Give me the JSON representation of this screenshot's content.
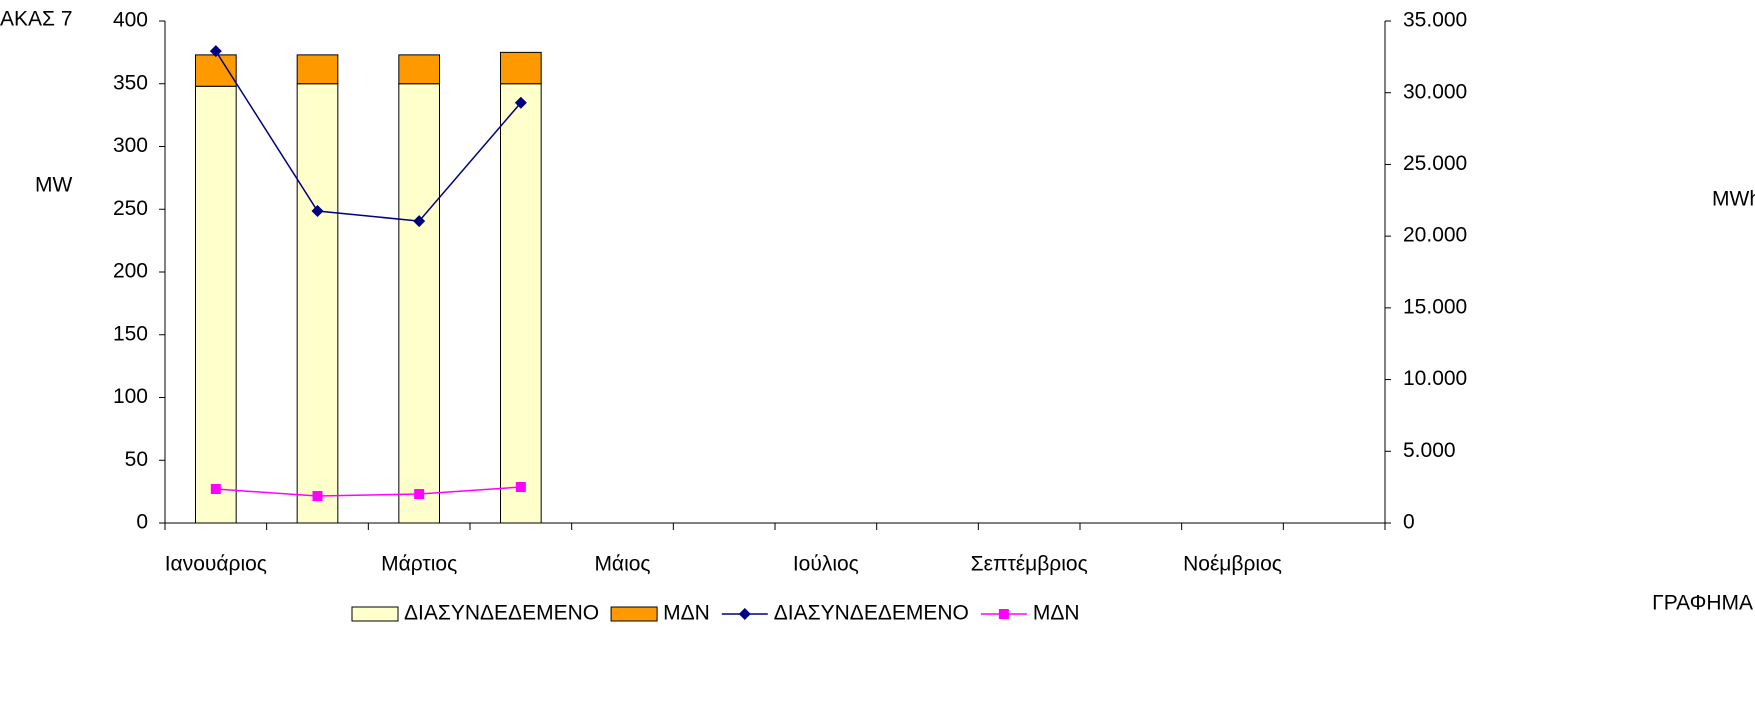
{
  "chart_data": {
    "type": "bar",
    "title": "ΑΚΑΣ 7",
    "caption": "ΓΡΑΦΗΜΑ",
    "y_label": "MW",
    "y2_label": "MWh",
    "categories": [
      "Ιανουάριος",
      null,
      "Μάρτιος",
      null,
      "Μάιος",
      null,
      "Ιούλιος",
      null,
      "Σεπτέμβριος",
      null,
      "Νοέμβριος",
      null
    ],
    "ylim": [
      0,
      400
    ],
    "yticks": [
      0,
      50,
      100,
      150,
      200,
      250,
      300,
      350,
      400
    ],
    "y2lim": [
      0,
      35000
    ],
    "y2ticks": [
      0,
      {
        "value": 5000,
        "label": "5.000"
      },
      {
        "value": 10000,
        "label": "10.000"
      },
      {
        "value": 15000,
        "label": "15.000"
      },
      {
        "value": 20000,
        "label": "20.000"
      },
      {
        "value": 25000,
        "label": "25.000"
      },
      {
        "value": 30000,
        "label": "30.000"
      },
      {
        "value": 35000,
        "label": "35.000"
      }
    ],
    "grid": false,
    "series": [
      {
        "name": "ΔΙΑΣΥΝΔΕΔΕΜΕΝΟ",
        "type": "bar",
        "color": "#ffffcc",
        "values": [
          348,
          350,
          350,
          350,
          null,
          null,
          null,
          null,
          null,
          null,
          null,
          null
        ]
      },
      {
        "name": "ΜΔΝ",
        "type": "bar",
        "color": "#ff9900",
        "values": [
          25,
          23,
          23,
          25,
          null,
          null,
          null,
          null,
          null,
          null,
          null,
          null
        ]
      },
      {
        "name": "ΔΙΑΣΥΝΔΕΔΕΜΕΝΟ",
        "type": "line",
        "axis": "y2",
        "marker": "diamond",
        "color": "#000080",
        "values": [
          32900,
          21750,
          21050,
          29300,
          null,
          null,
          null,
          null,
          null,
          null,
          null,
          null
        ]
      },
      {
        "name": "ΜΔΝ",
        "type": "line",
        "axis": "y2",
        "marker": "square",
        "color": "#ff00ff",
        "values": [
          2370,
          1880,
          2020,
          2510,
          null,
          null,
          null,
          null,
          null,
          null,
          null,
          null
        ]
      }
    ]
  }
}
